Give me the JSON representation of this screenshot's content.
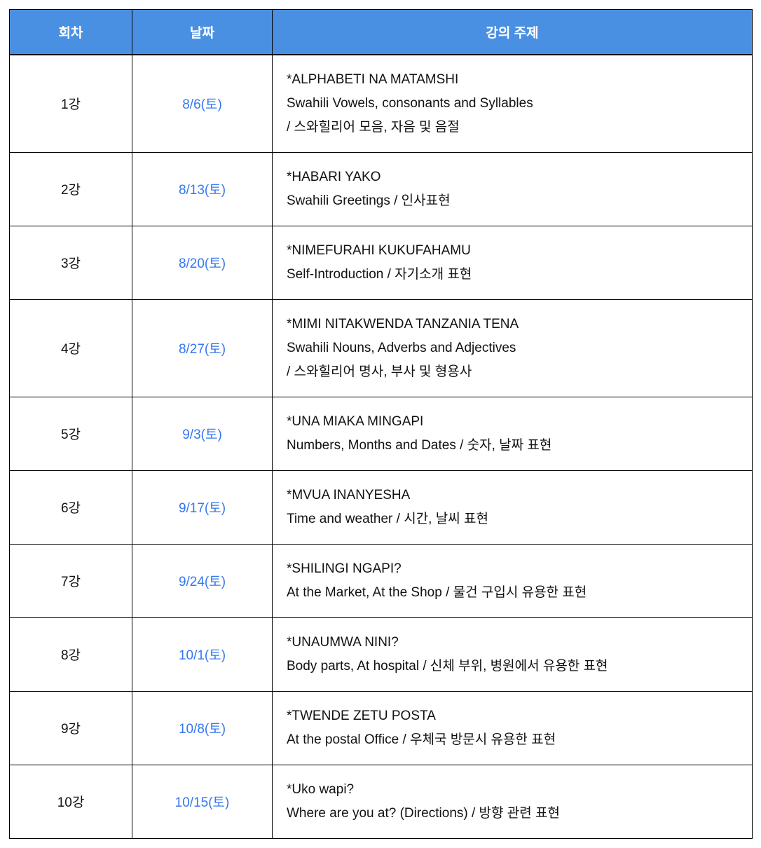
{
  "colors": {
    "header_bg": "#4a90e2",
    "header_text": "#ffffff",
    "date_text": "#3577f1",
    "border_color": "#000000",
    "body_text": "#111111"
  },
  "table": {
    "headers": {
      "session": "회차",
      "date": "날짜",
      "topic": "강의 주제"
    },
    "rows": [
      {
        "session": "1강",
        "date": "8/6(토)",
        "topic_lines": [
          "*ALPHABETI NA MATAMSHI",
          "Swahili Vowels, consonants and Syllables",
          "/ 스와힐리어 모음, 자음 및 음절"
        ]
      },
      {
        "session": "2강",
        "date": "8/13(토)",
        "topic_lines": [
          "*HABARI YAKO",
          "Swahili Greetings / 인사표현"
        ]
      },
      {
        "session": "3강",
        "date": "8/20(토)",
        "topic_lines": [
          "*NIMEFURAHI KUKUFAHAMU",
          "Self-Introduction / 자기소개 표현"
        ]
      },
      {
        "session": "4강",
        "date": "8/27(토)",
        "topic_lines": [
          "*MIMI NITAKWENDA TANZANIA TENA",
          "Swahili Nouns, Adverbs and Adjectives",
          "/ 스와힐리어 명사, 부사 및 형용사"
        ]
      },
      {
        "session": "5강",
        "date": "9/3(토)",
        "topic_lines": [
          "*UNA MIAKA MINGAPI",
          "Numbers, Months and Dates / 숫자, 날짜 표현"
        ]
      },
      {
        "session": "6강",
        "date": "9/17(토)",
        "topic_lines": [
          "*MVUA INANYESHA",
          "Time and weather / 시간, 날씨 표현"
        ]
      },
      {
        "session": "7강",
        "date": "9/24(토)",
        "topic_lines": [
          "*SHILINGI NGAPI?",
          "At the Market, At the Shop / 물건 구입시 유용한 표현"
        ]
      },
      {
        "session": "8강",
        "date": "10/1(토)",
        "topic_lines": [
          "*UNAUMWA NINI?",
          "Body parts, At hospital / 신체 부위, 병원에서 유용한 표현"
        ]
      },
      {
        "session": "9강",
        "date": "10/8(토)",
        "topic_lines": [
          "*TWENDE ZETU POSTA",
          "At the postal Office / 우체국 방문시 유용한 표현"
        ]
      },
      {
        "session": "10강",
        "date": "10/15(토)",
        "topic_lines": [
          "*Uko wapi?",
          "Where are you at? (Directions) / 방향 관련 표현"
        ]
      }
    ]
  }
}
